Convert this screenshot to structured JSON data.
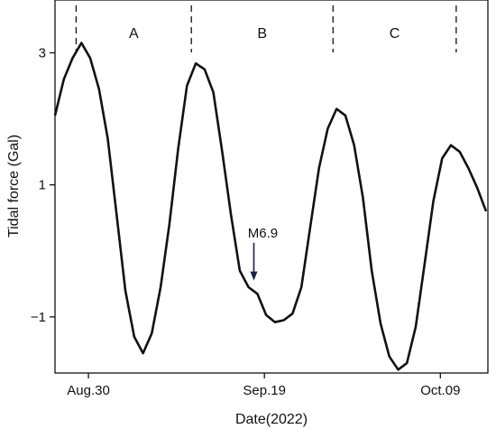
{
  "chart_data": {
    "type": "line",
    "xlabel": "Date(2022)",
    "ylabel": "Tidal force (Gal)",
    "x_ticks": [
      {
        "x": 30,
        "label": "Aug.30"
      },
      {
        "x": 50,
        "label": "Sep.19"
      },
      {
        "x": 70,
        "label": "Oct.09"
      }
    ],
    "y_ticks": [
      {
        "y": 3,
        "label": "3"
      },
      {
        "y": 1,
        "label": "1"
      },
      {
        "y": -1,
        "label": "−1"
      }
    ],
    "xlim": [
      26.2,
      75.4
    ],
    "ylim": [
      -1.85,
      3.8
    ],
    "grid": false,
    "series": [
      {
        "color": "#111111",
        "x": [
          26.2,
          27.2,
          28.2,
          29.2,
          30.2,
          31.2,
          32.2,
          33.2,
          34.2,
          35.2,
          36.2,
          37.2,
          38.2,
          39.2,
          40.2,
          41.2,
          42.2,
          43.2,
          44.2,
          45.2,
          46.2,
          47.2,
          48.2,
          49.2,
          50.2,
          51.2,
          52.2,
          53.2,
          54.2,
          55.2,
          56.2,
          57.2,
          58.2,
          59.2,
          60.2,
          61.2,
          62.2,
          63.2,
          64.2,
          65.2,
          66.2,
          67.2,
          68.2,
          69.2,
          70.2,
          71.2,
          72.2,
          73.2,
          74.2,
          75.2
        ],
        "y": [
          2.05,
          2.6,
          2.92,
          3.15,
          2.92,
          2.45,
          1.7,
          0.55,
          -0.6,
          -1.3,
          -1.55,
          -1.25,
          -0.55,
          0.4,
          1.55,
          2.5,
          2.84,
          2.75,
          2.4,
          1.5,
          0.55,
          -0.3,
          -0.55,
          -0.65,
          -0.97,
          -1.08,
          -1.05,
          -0.95,
          -0.55,
          0.35,
          1.25,
          1.85,
          2.15,
          2.05,
          1.6,
          0.8,
          -0.3,
          -1.1,
          -1.6,
          -1.8,
          -1.7,
          -1.15,
          -0.2,
          0.75,
          1.4,
          1.6,
          1.5,
          1.25,
          0.95,
          0.6
        ]
      }
    ],
    "regions": [
      {
        "label": "A",
        "start": 28.6,
        "end": 41.7
      },
      {
        "label": "B",
        "start": 41.7,
        "end": 57.8
      },
      {
        "label": "C",
        "start": 57.8,
        "end": 71.8
      }
    ],
    "annotations": [
      {
        "text": "M6.9",
        "x": 48.8,
        "y": -0.45,
        "arrow_tip_y": -0.45,
        "arrow_from_y": 0.15
      }
    ]
  }
}
